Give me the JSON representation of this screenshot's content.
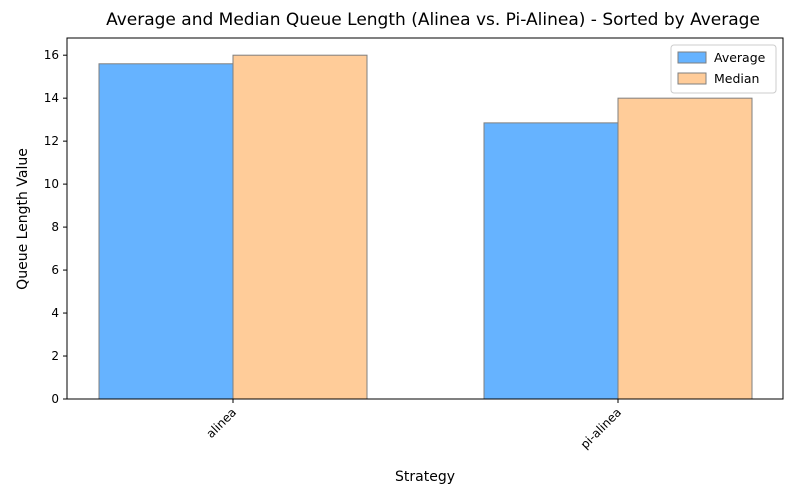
{
  "chart_data": {
    "type": "bar",
    "title": "Average and Median Queue Length (Alinea vs. Pi-Alinea) - Sorted by Average",
    "xlabel": "Strategy",
    "ylabel": "Queue Length Value",
    "categories": [
      "alinea",
      "pi-alinea"
    ],
    "series": [
      {
        "name": "Average",
        "values": [
          15.6,
          12.85
        ],
        "color": "#66b3ff"
      },
      {
        "name": "Median",
        "values": [
          16,
          14
        ],
        "color": "#ffcc99"
      }
    ],
    "ylim": [
      0,
      16.8
    ],
    "yticks": [
      "0",
      "2",
      "4",
      "6",
      "8",
      "10",
      "12",
      "14",
      "16"
    ],
    "grid": false,
    "legend": "top-right"
  }
}
